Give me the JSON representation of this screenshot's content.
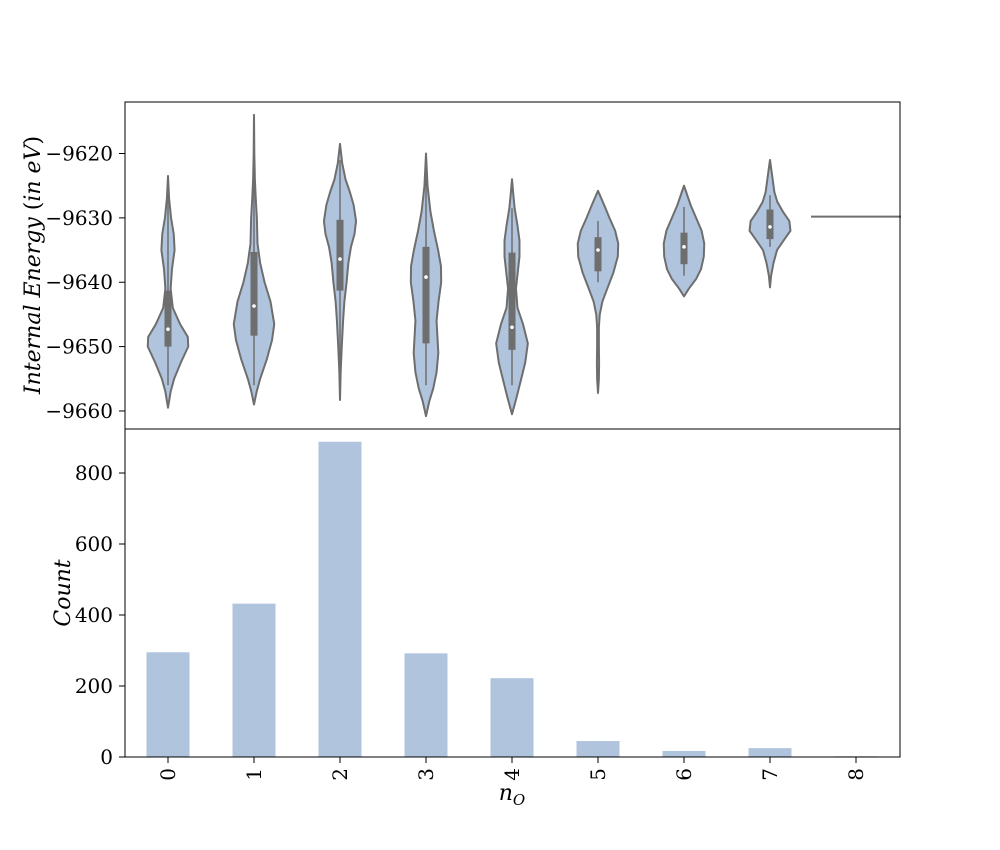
{
  "chart_data": [
    {
      "type": "violin",
      "title": "",
      "xlabel": "",
      "ylabel": "Internal Energy (in eV)",
      "ylim": [
        -9662.8,
        -9612.0
      ],
      "yticks": [
        -9660,
        -9650,
        -9640,
        -9630,
        -9620
      ],
      "ytick_labels": [
        "−9660",
        "−9650",
        "−9640",
        "−9630",
        "−9620"
      ],
      "categories": [
        "0",
        "1",
        "2",
        "3",
        "4",
        "5",
        "6",
        "7",
        "8"
      ],
      "color": "#b0c4de",
      "edge_color": "#6e6e6e",
      "grid": false,
      "violins": [
        {
          "category": "0",
          "min": -9659.5,
          "max": -9623.5,
          "q1": -9650.0,
          "median": -9647.3,
          "q3": -9641.3,
          "whisker_low": -9656.0,
          "whisker_high": -9625.5,
          "density": [
            [
              -9659.5,
              0.0
            ],
            [
              -9657.0,
              0.12
            ],
            [
              -9655.0,
              0.28
            ],
            [
              -9652.5,
              0.58
            ],
            [
              -9650.0,
              0.92
            ],
            [
              -9648.5,
              0.9
            ],
            [
              -9646.5,
              0.55
            ],
            [
              -9644.0,
              0.22
            ],
            [
              -9641.0,
              0.12
            ],
            [
              -9638.0,
              0.18
            ],
            [
              -9635.0,
              0.3
            ],
            [
              -9632.5,
              0.26
            ],
            [
              -9630.0,
              0.14
            ],
            [
              -9627.0,
              0.05
            ],
            [
              -9623.5,
              0.0
            ]
          ]
        },
        {
          "category": "1",
          "min": -9659.0,
          "max": -9614.0,
          "q1": -9648.3,
          "median": -9643.7,
          "q3": -9635.3,
          "whisker_low": -9656.0,
          "whisker_high": -9616.0,
          "density": [
            [
              -9659.0,
              0.0
            ],
            [
              -9657.0,
              0.12
            ],
            [
              -9655.0,
              0.28
            ],
            [
              -9652.0,
              0.58
            ],
            [
              -9649.0,
              0.82
            ],
            [
              -9646.5,
              0.92
            ],
            [
              -9643.0,
              0.75
            ],
            [
              -9640.0,
              0.48
            ],
            [
              -9637.0,
              0.28
            ],
            [
              -9634.0,
              0.16
            ],
            [
              -9630.0,
              0.13
            ],
            [
              -9627.0,
              0.08
            ],
            [
              -9624.0,
              0.04
            ],
            [
              -9620.0,
              0.015
            ],
            [
              -9614.0,
              0.0
            ]
          ]
        },
        {
          "category": "2",
          "min": -9658.3,
          "max": -9618.5,
          "q1": -9641.3,
          "median": -9636.4,
          "q3": -9630.3,
          "whisker_low": -9653.5,
          "whisker_high": -9621.0,
          "density": [
            [
              -9658.3,
              0.0
            ],
            [
              -9654.0,
              0.03
            ],
            [
              -9650.0,
              0.08
            ],
            [
              -9646.0,
              0.14
            ],
            [
              -9643.0,
              0.2
            ],
            [
              -9640.0,
              0.3
            ],
            [
              -9637.0,
              0.38
            ],
            [
              -9634.5,
              0.5
            ],
            [
              -9632.5,
              0.66
            ],
            [
              -9630.5,
              0.73
            ],
            [
              -9628.0,
              0.62
            ],
            [
              -9626.0,
              0.45
            ],
            [
              -9624.0,
              0.25
            ],
            [
              -9621.5,
              0.1
            ],
            [
              -9618.5,
              0.0
            ]
          ]
        },
        {
          "category": "3",
          "min": -9660.8,
          "max": -9620.0,
          "q1": -9649.5,
          "median": -9639.2,
          "q3": -9634.5,
          "whisker_low": -9656.0,
          "whisker_high": -9623.0,
          "density": [
            [
              -9660.8,
              0.0
            ],
            [
              -9658.5,
              0.15
            ],
            [
              -9656.5,
              0.33
            ],
            [
              -9654.0,
              0.48
            ],
            [
              -9651.0,
              0.56
            ],
            [
              -9648.5,
              0.52
            ],
            [
              -9646.0,
              0.48
            ],
            [
              -9643.0,
              0.57
            ],
            [
              -9640.0,
              0.69
            ],
            [
              -9637.5,
              0.68
            ],
            [
              -9635.0,
              0.55
            ],
            [
              -9632.0,
              0.36
            ],
            [
              -9629.0,
              0.2
            ],
            [
              -9625.0,
              0.07
            ],
            [
              -9620.0,
              0.0
            ]
          ]
        },
        {
          "category": "4",
          "min": -9660.5,
          "max": -9624.0,
          "q1": -9650.5,
          "median": -9647.0,
          "q3": -9635.4,
          "whisker_low": -9656.0,
          "whisker_high": -9628.5,
          "density": [
            [
              -9660.5,
              0.0
            ],
            [
              -9658.0,
              0.2
            ],
            [
              -9655.0,
              0.42
            ],
            [
              -9652.5,
              0.6
            ],
            [
              -9649.5,
              0.72
            ],
            [
              -9646.5,
              0.5
            ],
            [
              -9644.0,
              0.25
            ],
            [
              -9641.0,
              0.18
            ],
            [
              -9638.5,
              0.26
            ],
            [
              -9636.0,
              0.34
            ],
            [
              -9633.5,
              0.34
            ],
            [
              -9631.0,
              0.24
            ],
            [
              -9628.5,
              0.12
            ],
            [
              -9626.0,
              0.05
            ],
            [
              -9624.0,
              0.0
            ]
          ]
        },
        {
          "category": "5",
          "min": -9657.2,
          "max": -9625.8,
          "q1": -9638.3,
          "median": -9635.0,
          "q3": -9633.0,
          "whisker_low": -9640.0,
          "whisker_high": -9630.5,
          "density": [
            [
              -9657.2,
              0.0
            ],
            [
              -9655.0,
              0.04
            ],
            [
              -9652.5,
              0.05
            ],
            [
              -9650.0,
              0.04
            ],
            [
              -9647.0,
              0.04
            ],
            [
              -9645.0,
              0.08
            ],
            [
              -9643.0,
              0.2
            ],
            [
              -9641.0,
              0.42
            ],
            [
              -9638.5,
              0.7
            ],
            [
              -9636.0,
              0.9
            ],
            [
              -9634.0,
              0.92
            ],
            [
              -9632.0,
              0.78
            ],
            [
              -9630.0,
              0.52
            ],
            [
              -9628.0,
              0.28
            ],
            [
              -9625.8,
              0.0
            ]
          ]
        },
        {
          "category": "6",
          "min": -9642.2,
          "max": -9625.0,
          "q1": -9637.2,
          "median": -9634.5,
          "q3": -9632.3,
          "whisker_low": -9639.0,
          "whisker_high": -9628.3,
          "density": [
            [
              -9642.2,
              0.0
            ],
            [
              -9641.0,
              0.22
            ],
            [
              -9639.5,
              0.55
            ],
            [
              -9638.0,
              0.77
            ],
            [
              -9636.0,
              0.9
            ],
            [
              -9634.0,
              0.92
            ],
            [
              -9632.0,
              0.8
            ],
            [
              -9630.0,
              0.55
            ],
            [
              -9628.0,
              0.3
            ],
            [
              -9626.0,
              0.1
            ],
            [
              -9625.0,
              0.0
            ]
          ]
        },
        {
          "category": "7",
          "min": -9640.8,
          "max": -9621.0,
          "q1": -9633.3,
          "median": -9631.4,
          "q3": -9628.7,
          "whisker_low": -9634.5,
          "whisker_high": -9626.5,
          "density": [
            [
              -9640.8,
              0.0
            ],
            [
              -9639.0,
              0.05
            ],
            [
              -9637.0,
              0.16
            ],
            [
              -9635.0,
              0.32
            ],
            [
              -9633.5,
              0.62
            ],
            [
              -9632.0,
              0.93
            ],
            [
              -9630.5,
              0.88
            ],
            [
              -9629.0,
              0.58
            ],
            [
              -9627.5,
              0.33
            ],
            [
              -9626.0,
              0.2
            ],
            [
              -9624.0,
              0.12
            ],
            [
              -9621.0,
              0.0
            ]
          ]
        },
        {
          "category": "8",
          "single_value": -9629.8
        }
      ]
    },
    {
      "type": "bar",
      "title": "",
      "xlabel": "n_O",
      "ylabel": "Count",
      "ylim": [
        0,
        924
      ],
      "yticks": [
        0,
        200,
        400,
        600,
        800
      ],
      "categories": [
        "0",
        "1",
        "2",
        "3",
        "4",
        "5",
        "6",
        "7",
        "8"
      ],
      "values": [
        295,
        432,
        888,
        292,
        222,
        45,
        17,
        25,
        2
      ],
      "color": "#b0c4de",
      "grid": false
    }
  ]
}
